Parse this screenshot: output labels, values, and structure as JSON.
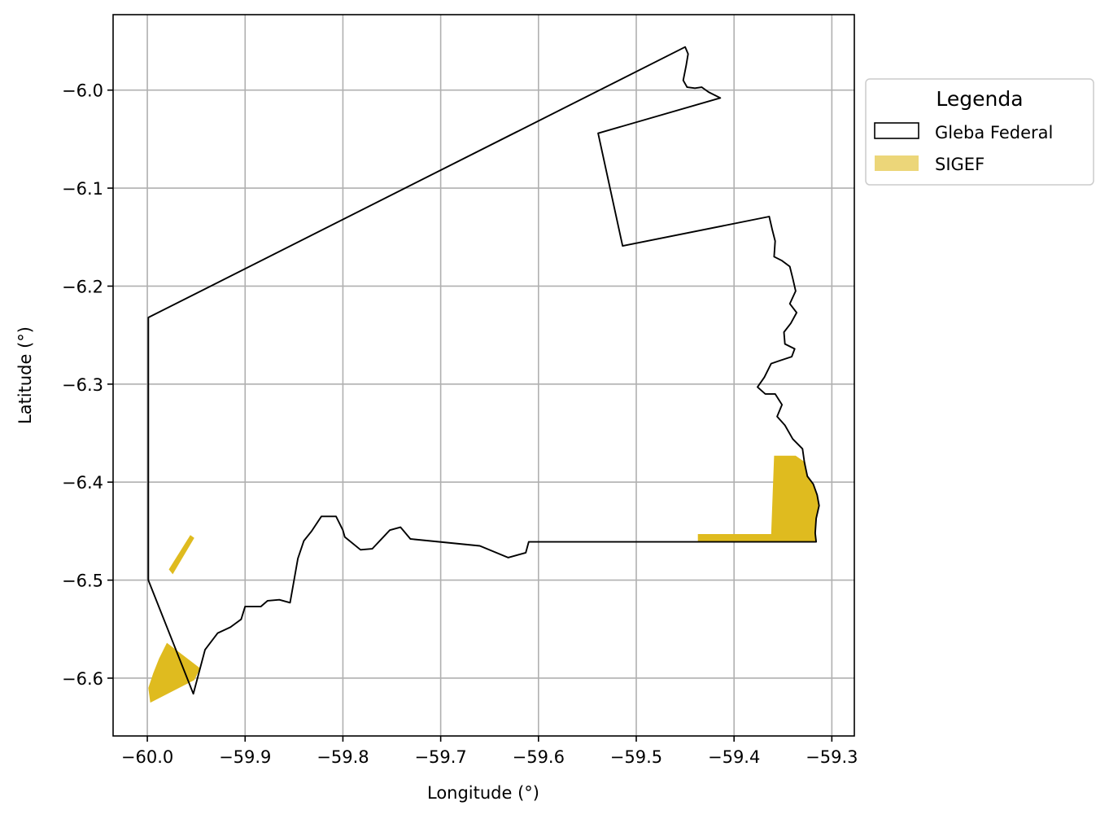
{
  "chart_data": {
    "type": "map",
    "xlabel": "Longitude (°)",
    "ylabel": "Latitude (°)",
    "xlim": [
      -60.035,
      -59.277
    ],
    "ylim": [
      -6.659,
      -5.923
    ],
    "xticks": [
      -60.0,
      -59.9,
      -59.8,
      -59.7,
      -59.6,
      -59.5,
      -59.4,
      -59.3
    ],
    "xtick_labels": [
      "−60.0",
      "−59.9",
      "−59.8",
      "−59.7",
      "−59.6",
      "−59.5",
      "−59.4",
      "−59.3"
    ],
    "yticks": [
      -6.0,
      -6.1,
      -6.2,
      -6.3,
      -6.4,
      -6.5,
      -6.6
    ],
    "ytick_labels": [
      "−6.0",
      "−6.1",
      "−6.2",
      "−6.3",
      "−6.4",
      "−6.5",
      "−6.6"
    ],
    "grid": true,
    "legend": {
      "title": "Legenda",
      "placement": "outside-upper-right",
      "entries": [
        {
          "label": "Gleba Federal",
          "style": "outline",
          "color": "#000000"
        },
        {
          "label": "SIGEF",
          "style": "fill",
          "color": "#dfbb1f"
        }
      ]
    },
    "layers": [
      {
        "name": "Gleba Federal",
        "style": "outline",
        "color": "#000000",
        "polygons": [
          [
            [
              -59.999,
              -6.232
            ],
            [
              -59.45,
              -5.956
            ],
            [
              -59.447,
              -5.963
            ],
            [
              -59.449,
              -5.975
            ],
            [
              -59.452,
              -5.99
            ],
            [
              -59.448,
              -5.997
            ],
            [
              -59.44,
              -5.998
            ],
            [
              -59.433,
              -5.997
            ],
            [
              -59.426,
              -6.002
            ],
            [
              -59.414,
              -6.008
            ],
            [
              -59.539,
              -6.044
            ],
            [
              -59.514,
              -6.159
            ],
            [
              -59.364,
              -6.129
            ],
            [
              -59.361,
              -6.142
            ],
            [
              -59.358,
              -6.154
            ],
            [
              -59.359,
              -6.17
            ],
            [
              -59.351,
              -6.174
            ],
            [
              -59.343,
              -6.18
            ],
            [
              -59.34,
              -6.192
            ],
            [
              -59.337,
              -6.205
            ],
            [
              -59.343,
              -6.218
            ],
            [
              -59.336,
              -6.227
            ],
            [
              -59.342,
              -6.238
            ],
            [
              -59.349,
              -6.247
            ],
            [
              -59.348,
              -6.259
            ],
            [
              -59.338,
              -6.264
            ],
            [
              -59.341,
              -6.272
            ],
            [
              -59.353,
              -6.276
            ],
            [
              -59.362,
              -6.279
            ],
            [
              -59.369,
              -6.293
            ],
            [
              -59.376,
              -6.303
            ],
            [
              -59.368,
              -6.31
            ],
            [
              -59.358,
              -6.31
            ],
            [
              -59.351,
              -6.321
            ],
            [
              -59.356,
              -6.333
            ],
            [
              -59.348,
              -6.342
            ],
            [
              -59.34,
              -6.356
            ],
            [
              -59.33,
              -6.366
            ],
            [
              -59.328,
              -6.38
            ],
            [
              -59.325,
              -6.394
            ],
            [
              -59.319,
              -6.402
            ],
            [
              -59.315,
              -6.413
            ],
            [
              -59.313,
              -6.424
            ],
            [
              -59.316,
              -6.437
            ],
            [
              -59.317,
              -6.452
            ],
            [
              -59.316,
              -6.461
            ],
            [
              -59.61,
              -6.461
            ],
            [
              -59.613,
              -6.472
            ],
            [
              -59.631,
              -6.477
            ],
            [
              -59.66,
              -6.465
            ],
            [
              -59.731,
              -6.458
            ],
            [
              -59.741,
              -6.446
            ],
            [
              -59.752,
              -6.449
            ],
            [
              -59.77,
              -6.468
            ],
            [
              -59.782,
              -6.469
            ],
            [
              -59.798,
              -6.456
            ],
            [
              -59.8,
              -6.449
            ],
            [
              -59.807,
              -6.435
            ],
            [
              -59.822,
              -6.435
            ],
            [
              -59.832,
              -6.45
            ],
            [
              -59.84,
              -6.46
            ],
            [
              -59.846,
              -6.478
            ],
            [
              -59.854,
              -6.523
            ],
            [
              -59.865,
              -6.52
            ],
            [
              -59.877,
              -6.521
            ],
            [
              -59.884,
              -6.527
            ],
            [
              -59.9,
              -6.527
            ],
            [
              -59.904,
              -6.54
            ],
            [
              -59.915,
              -6.548
            ],
            [
              -59.928,
              -6.554
            ],
            [
              -59.941,
              -6.571
            ],
            [
              -59.953,
              -6.616
            ],
            [
              -59.999,
              -6.5
            ]
          ]
        ]
      },
      {
        "name": "SIGEF",
        "style": "fill",
        "color": "#dfbb1f",
        "polygons": [
          [
            [
              -59.437,
              -6.453
            ],
            [
              -59.362,
              -6.453
            ],
            [
              -59.359,
              -6.373
            ],
            [
              -59.337,
              -6.373
            ],
            [
              -59.327,
              -6.38
            ],
            [
              -59.325,
              -6.394
            ],
            [
              -59.319,
              -6.402
            ],
            [
              -59.315,
              -6.413
            ],
            [
              -59.313,
              -6.424
            ],
            [
              -59.316,
              -6.437
            ],
            [
              -59.317,
              -6.452
            ],
            [
              -59.316,
              -6.461
            ],
            [
              -59.437,
              -6.461
            ]
          ],
          [
            [
              -59.974,
              -6.494
            ],
            [
              -59.978,
              -6.489
            ],
            [
              -59.956,
              -6.454
            ],
            [
              -59.952,
              -6.457
            ]
          ],
          [
            [
              -59.98,
              -6.564
            ],
            [
              -59.946,
              -6.59
            ],
            [
              -59.952,
              -6.602
            ],
            [
              -59.997,
              -6.625
            ],
            [
              -59.999,
              -6.61
            ],
            [
              -59.994,
              -6.595
            ],
            [
              -59.988,
              -6.58
            ]
          ]
        ]
      }
    ]
  }
}
